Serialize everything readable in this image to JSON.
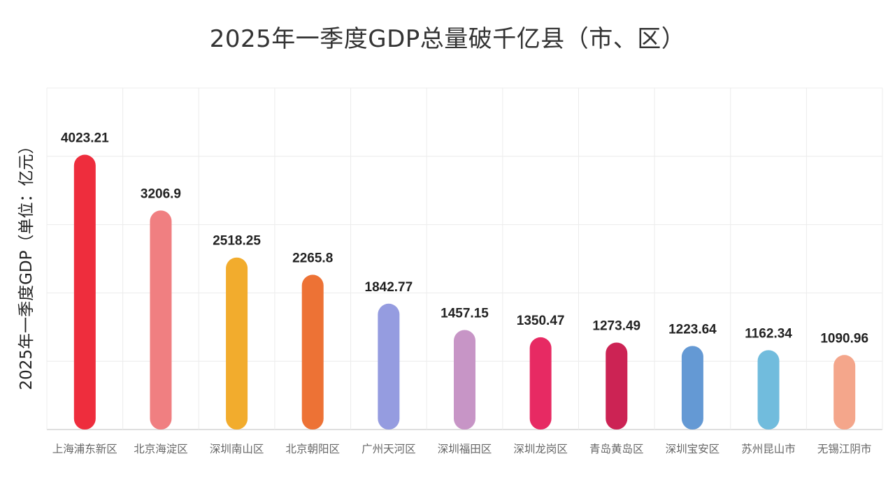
{
  "chart_data": {
    "type": "bar",
    "title": "2025年一季度GDP总量破千亿县（市、区）",
    "xlabel": "",
    "ylabel": "2025年一季度GDP（单位：亿元）",
    "ylim": [
      0,
      5000
    ],
    "grid": true,
    "categories": [
      "上海浦东新区",
      "北京海淀区",
      "深圳南山区",
      "北京朝阳区",
      "广州天河区",
      "深圳福田区",
      "深圳龙岗区",
      "青岛黄岛区",
      "深圳宝安区",
      "苏州昆山市",
      "无锡江阴市"
    ],
    "values": [
      4023.21,
      3206.9,
      2518.25,
      2265.8,
      1842.77,
      1457.15,
      1350.47,
      1273.49,
      1223.64,
      1162.34,
      1090.96
    ],
    "value_labels": [
      "4023.21",
      "3206.9",
      "2518.25",
      "2265.8",
      "1842.77",
      "1457.15",
      "1350.47",
      "1273.49",
      "1223.64",
      "1162.34",
      "1090.96"
    ],
    "colors": [
      "#ee2d3d",
      "#f07f81",
      "#f2ac2d",
      "#ed7235",
      "#959ce0",
      "#c795c6",
      "#e72a63",
      "#cc2354",
      "#6499d4",
      "#71bcdd",
      "#f4a68b"
    ]
  }
}
